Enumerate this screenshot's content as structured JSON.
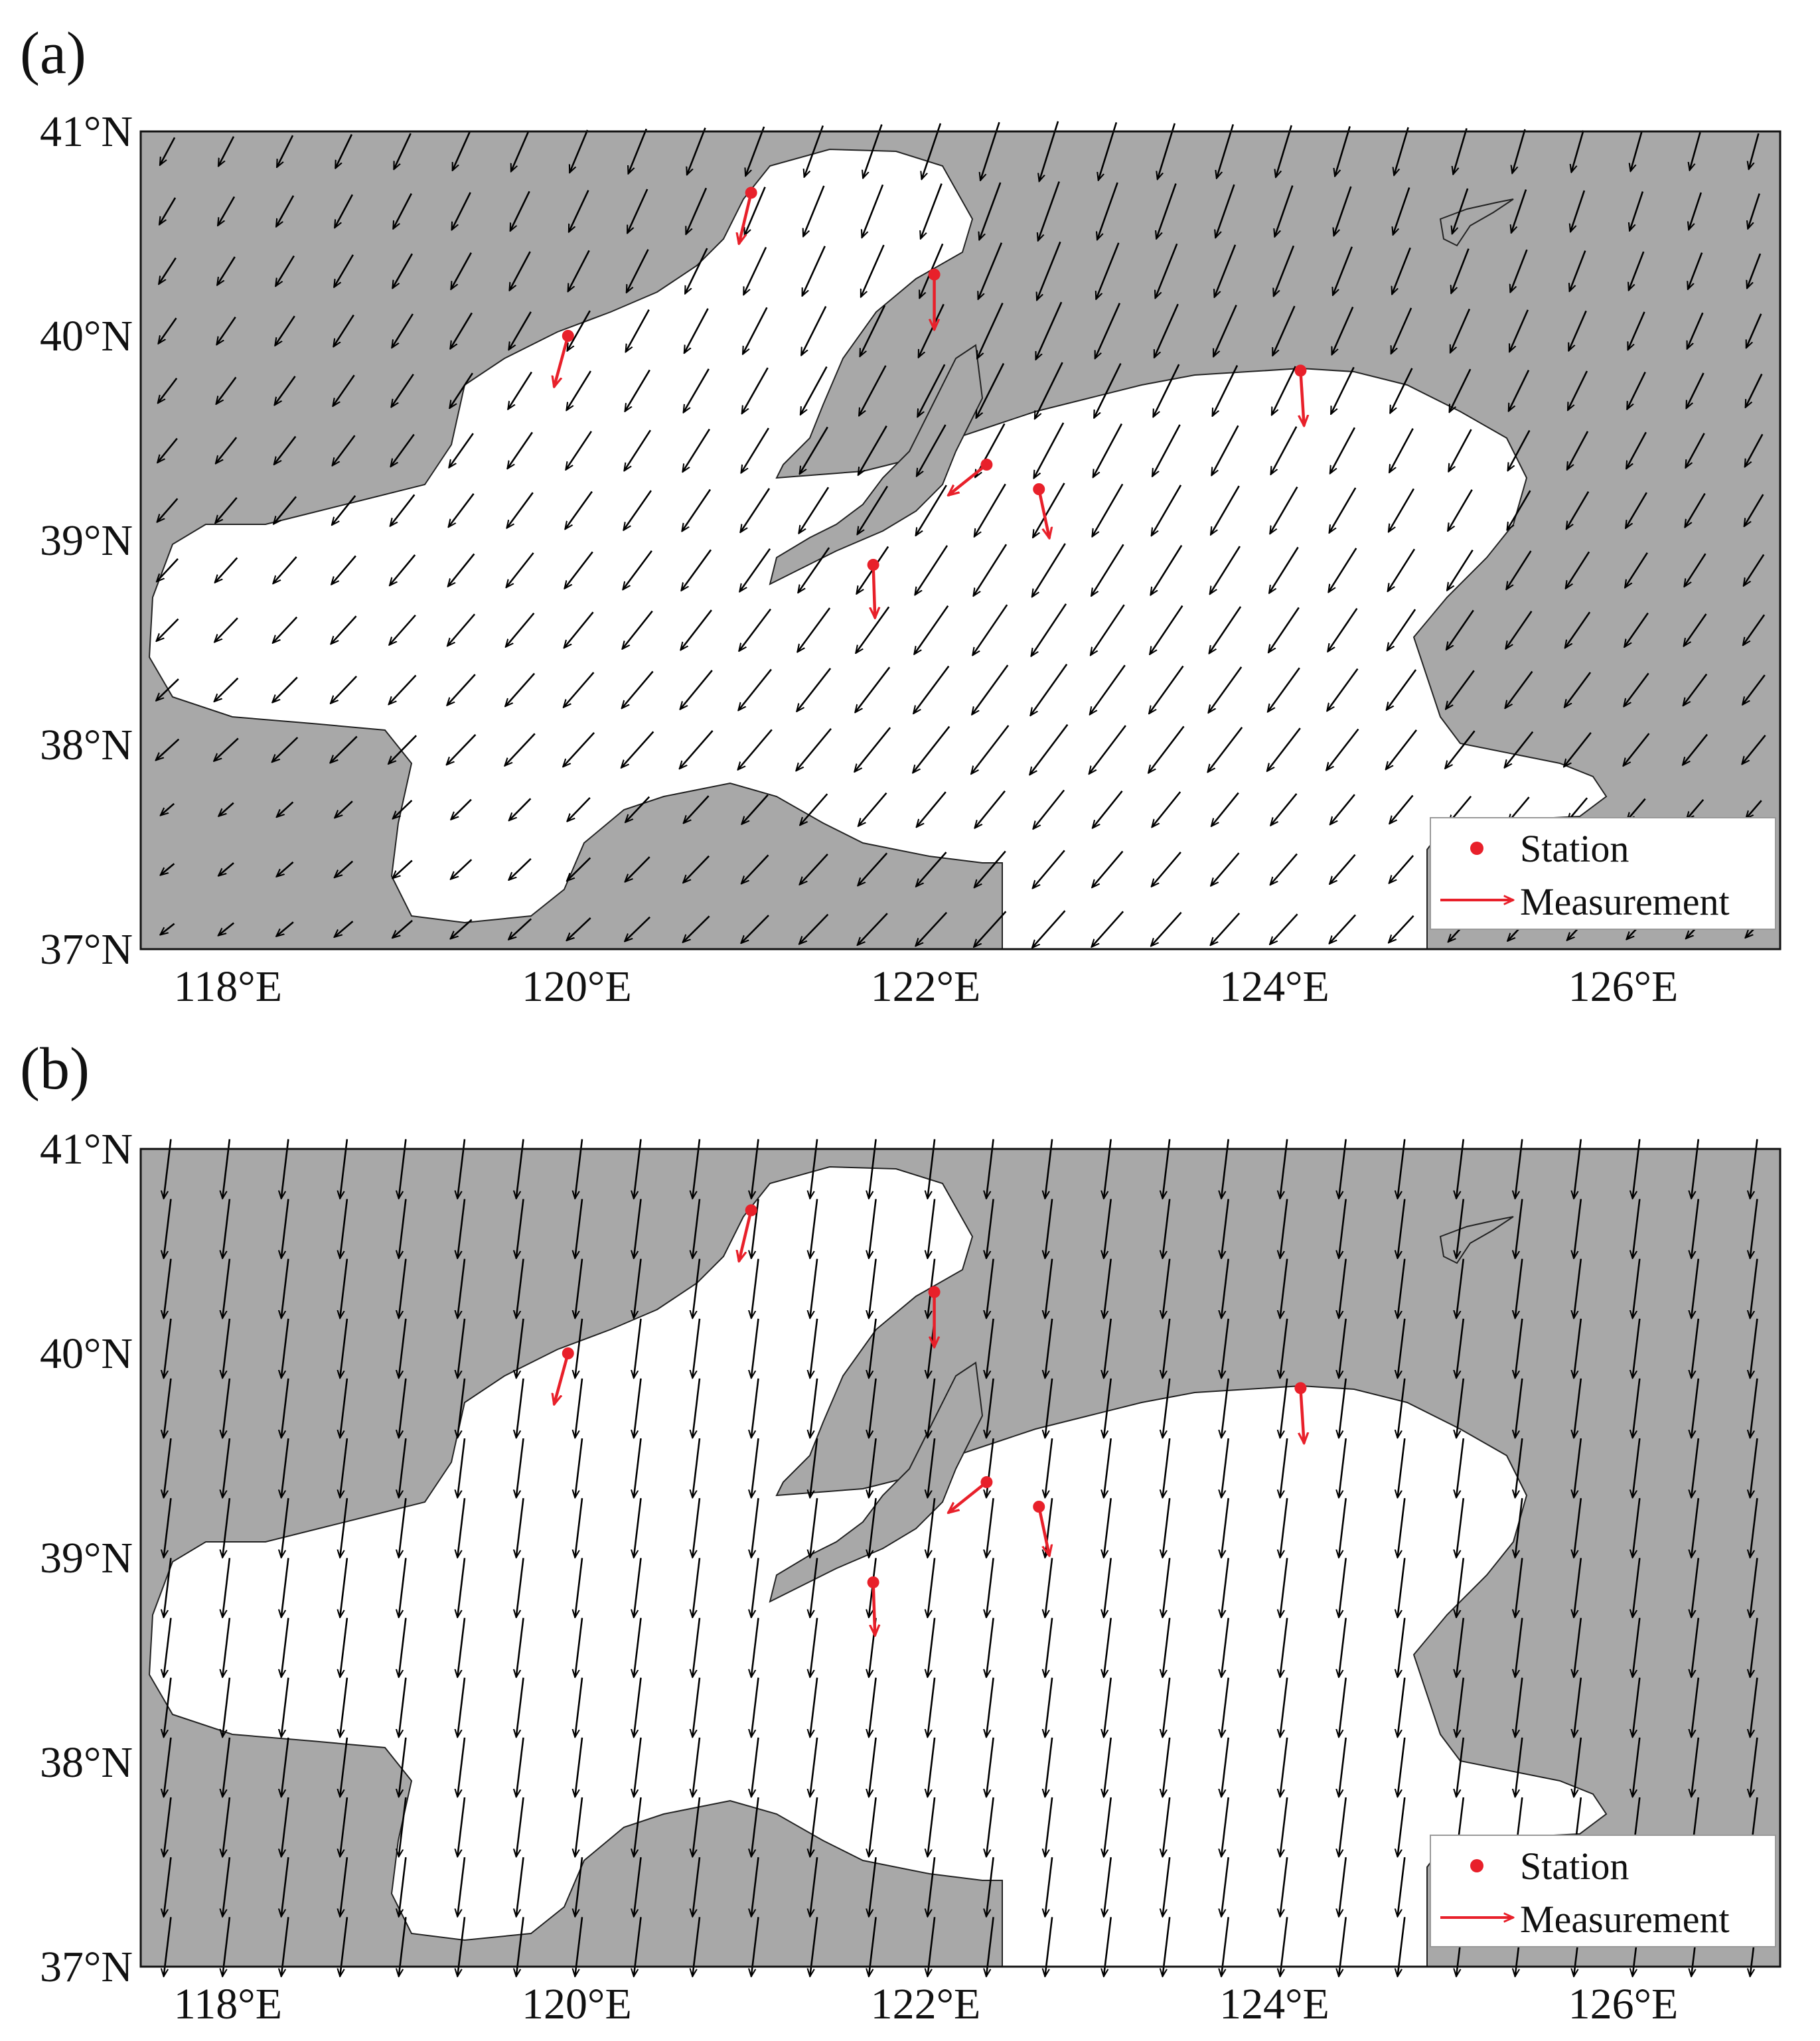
{
  "panels": [
    {
      "label": "(a)",
      "x_ticks": [
        "118°E",
        "120°E",
        "122°E",
        "124°E",
        "126°E"
      ],
      "y_ticks": [
        "41°N",
        "40°N",
        "39°N",
        "38°N",
        "37°N"
      ],
      "legend": {
        "station": "Station",
        "measurement": "Measurement"
      },
      "wind_field": "cyclonic"
    },
    {
      "label": "(b)",
      "x_ticks": [
        "118°E",
        "120°E",
        "122°E",
        "124°E",
        "126°E"
      ],
      "y_ticks": [
        "41°N",
        "40°N",
        "39°N",
        "38°N",
        "37°N"
      ],
      "legend": {
        "station": "Station",
        "measurement": "Measurement"
      },
      "wind_field": "uniform"
    }
  ],
  "map": {
    "lon_range": [
      117.5,
      126.9
    ],
    "lat_range": [
      37.0,
      41.0
    ],
    "land_color": "#a8a8a8",
    "sea_color": "#ffffff",
    "vector_color": "#000000",
    "measurement_color": "#e8202a"
  },
  "stations": [
    {
      "lon": 121.0,
      "lat": 40.7,
      "dlon": -0.07,
      "dlat": -0.25
    },
    {
      "lon": 122.05,
      "lat": 40.3,
      "dlon": 0.0,
      "dlat": -0.27
    },
    {
      "lon": 119.95,
      "lat": 40.0,
      "dlon": -0.08,
      "dlat": -0.25
    },
    {
      "lon": 124.15,
      "lat": 39.83,
      "dlon": 0.02,
      "dlat": -0.27
    },
    {
      "lon": 122.35,
      "lat": 39.37,
      "dlon": -0.22,
      "dlat": -0.15
    },
    {
      "lon": 122.65,
      "lat": 39.25,
      "dlon": 0.06,
      "dlat": -0.24
    },
    {
      "lon": 121.7,
      "lat": 38.88,
      "dlon": 0.01,
      "dlat": -0.26
    }
  ]
}
